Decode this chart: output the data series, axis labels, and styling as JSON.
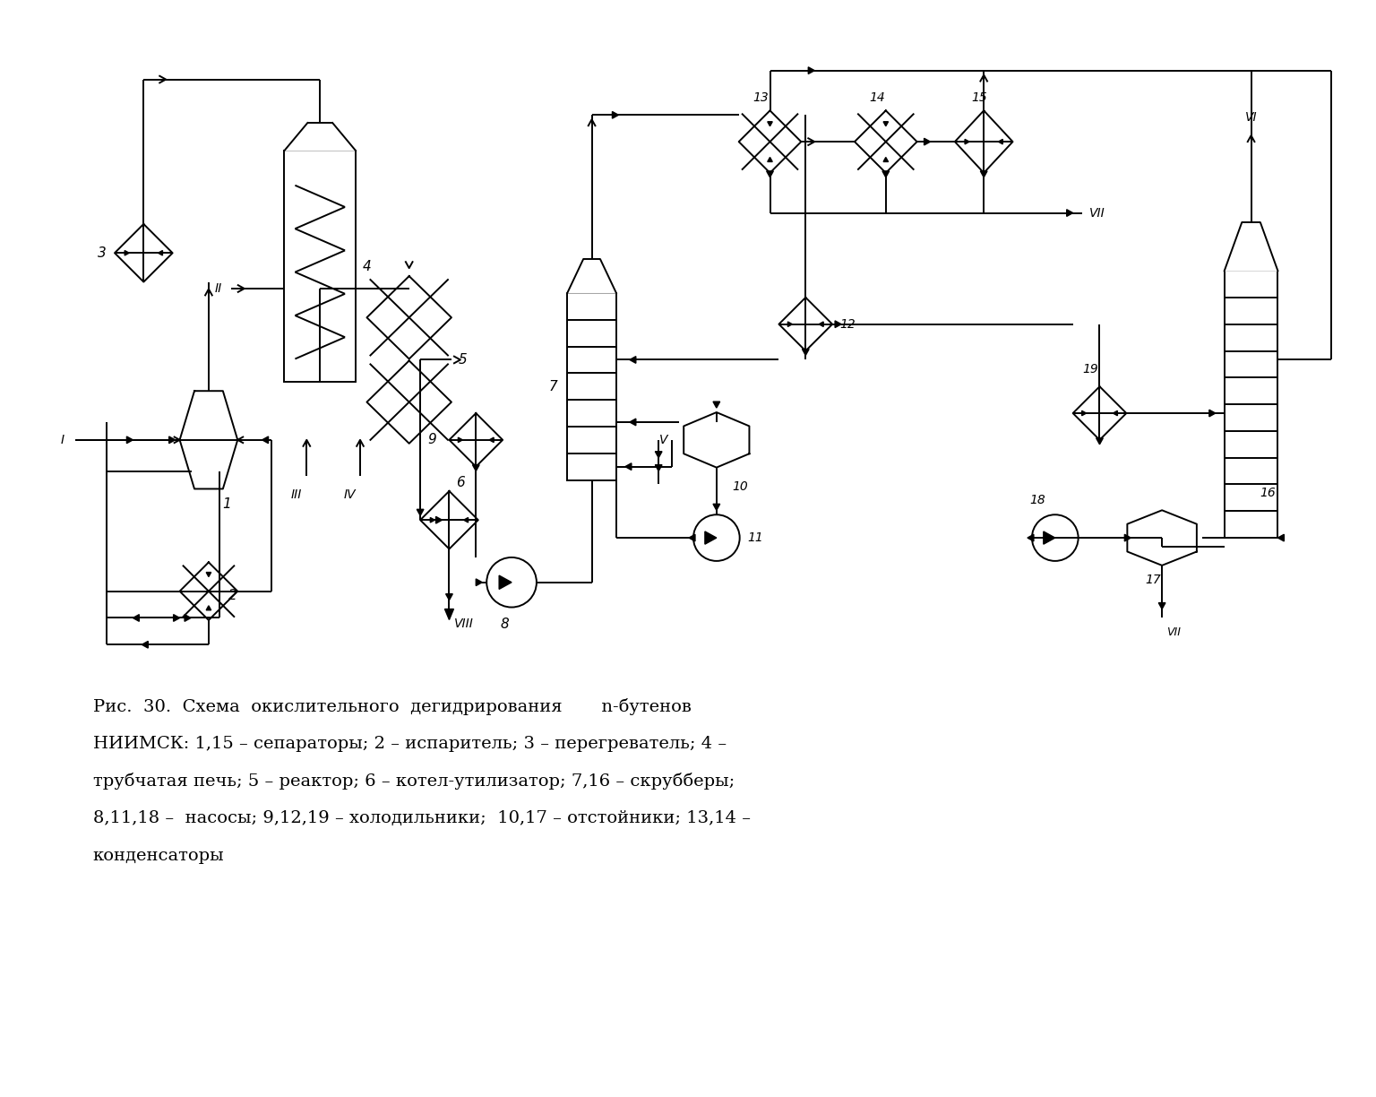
{
  "bg_color": "#ffffff",
  "line_color": "#000000",
  "lw": 1.4,
  "caption_line1": "Рис.  30.  Схема  окислительного  дегидрирования       n-бутенов",
  "caption_line2": "НИИМСК: 1,15 – сепараторы; 2 – испаритель; 3 – перегреватель; 4 –",
  "caption_line3": "трубчатая печь; 5 – реактор; 6 – котел-утилизатор; 7,16 – скрубберы;",
  "caption_line4": "8,11,18 –  насосы; 9,12,19 – холодильники;  10,17 – отстойники; 13,14 –",
  "caption_line5": "конденсаторы"
}
